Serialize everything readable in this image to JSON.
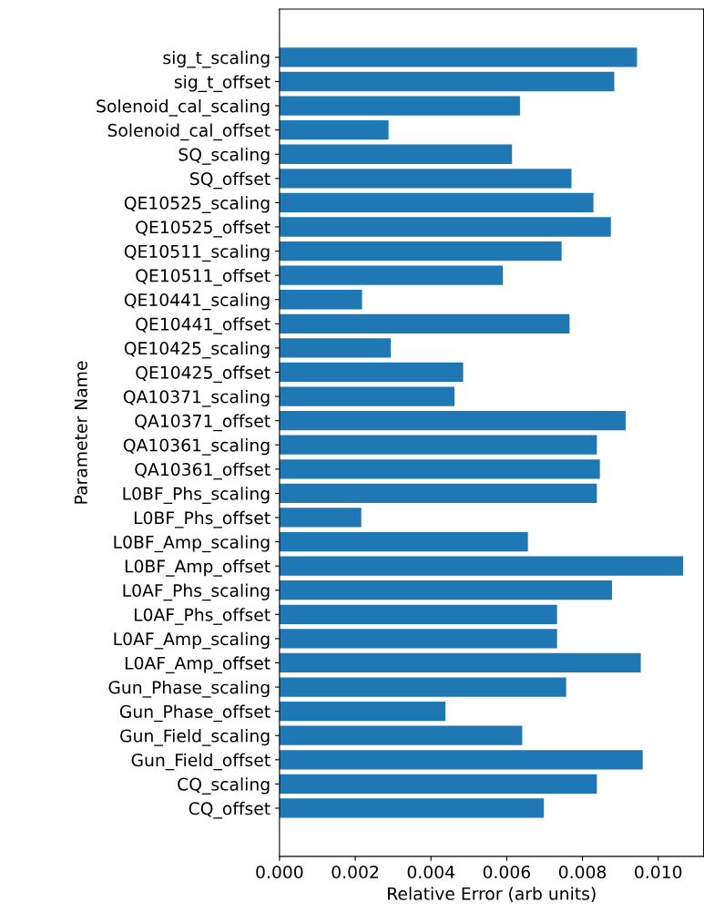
{
  "chart_data": {
    "type": "bar",
    "orientation": "horizontal",
    "xlabel": "Relative Error (arb units)",
    "ylabel": "Parameter Name",
    "categories": [
      "sig_t_scaling",
      "sig_t_offset",
      "Solenoid_cal_scaling",
      "Solenoid_cal_offset",
      "SQ_scaling",
      "SQ_offset",
      "QE10525_scaling",
      "QE10525_offset",
      "QE10511_scaling",
      "QE10511_offset",
      "QE10441_scaling",
      "QE10441_offset",
      "QE10425_scaling",
      "QE10425_offset",
      "QA10371_scaling",
      "QA10371_offset",
      "QA10361_scaling",
      "QA10361_offset",
      "L0BF_Phs_scaling",
      "L0BF_Phs_offset",
      "L0BF_Amp_scaling",
      "L0BF_Amp_offset",
      "L0AF_Phs_scaling",
      "L0AF_Phs_offset",
      "L0AF_Amp_scaling",
      "L0AF_Amp_offset",
      "Gun_Phase_scaling",
      "Gun_Phase_offset",
      "Gun_Field_scaling",
      "Gun_Field_offset",
      "CQ_scaling",
      "CQ_offset"
    ],
    "values": [
      0.00944,
      0.00884,
      0.00635,
      0.00288,
      0.00614,
      0.00771,
      0.00829,
      0.00875,
      0.00745,
      0.0059,
      0.00218,
      0.00766,
      0.00294,
      0.00485,
      0.00462,
      0.00914,
      0.00838,
      0.00846,
      0.00838,
      0.00216,
      0.00656,
      0.01066,
      0.00878,
      0.00733,
      0.00733,
      0.00954,
      0.00757,
      0.00438,
      0.00641,
      0.00959,
      0.00838,
      0.00698
    ],
    "color": "#1f77b4",
    "xlim": [
      0,
      0.0112
    ],
    "xticks": [
      {
        "value": 0,
        "label": "0.000"
      },
      {
        "value": 0.002,
        "label": "0.002"
      },
      {
        "value": 0.004,
        "label": "0.004"
      },
      {
        "value": 0.006,
        "label": "0.006"
      },
      {
        "value": 0.008,
        "label": "0.008"
      },
      {
        "value": 0.01,
        "label": "0.010"
      }
    ],
    "grid": false
  }
}
